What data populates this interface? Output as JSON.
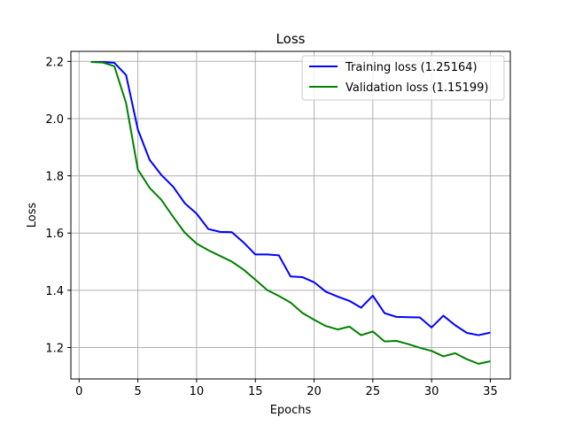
{
  "chart_data": {
    "type": "line",
    "title": "Loss",
    "xlabel": "Epochs",
    "ylabel": "Loss",
    "xlim": [
      -0.7,
      36.7
    ],
    "ylim": [
      1.09,
      2.235
    ],
    "xticks": [
      0,
      5,
      10,
      15,
      20,
      25,
      30,
      35
    ],
    "xtick_labels": [
      "0",
      "5",
      "10",
      "15",
      "20",
      "25",
      "30",
      "35"
    ],
    "yticks": [
      1.2,
      1.4,
      1.6,
      1.8,
      2.0,
      2.2
    ],
    "ytick_labels": [
      "1.2",
      "1.4",
      "1.6",
      "1.8",
      "2.0",
      "2.2"
    ],
    "grid": true,
    "legend_position": "top-right",
    "x": [
      1,
      2,
      3,
      4,
      5,
      6,
      7,
      8,
      9,
      10,
      11,
      12,
      13,
      14,
      15,
      16,
      17,
      18,
      19,
      20,
      21,
      22,
      23,
      24,
      25,
      26,
      27,
      28,
      29,
      30,
      31,
      32,
      33,
      34,
      35
    ],
    "series": [
      {
        "name": "Training loss (1.25164)",
        "color": "#0000ff",
        "values": [
          2.198,
          2.198,
          2.195,
          2.152,
          1.962,
          1.856,
          1.803,
          1.762,
          1.704,
          1.668,
          1.614,
          1.604,
          1.603,
          1.567,
          1.525,
          1.525,
          1.522,
          1.448,
          1.446,
          1.428,
          1.395,
          1.378,
          1.363,
          1.339,
          1.381,
          1.32,
          1.307,
          1.306,
          1.305,
          1.27,
          1.311,
          1.278,
          1.251,
          1.243,
          1.252
        ]
      },
      {
        "name": "Validation loss (1.15199)",
        "color": "#008000",
        "values": [
          2.198,
          2.196,
          2.183,
          2.054,
          1.822,
          1.758,
          1.716,
          1.657,
          1.601,
          1.563,
          1.54,
          1.52,
          1.5,
          1.472,
          1.437,
          1.401,
          1.38,
          1.357,
          1.321,
          1.297,
          1.275,
          1.263,
          1.273,
          1.243,
          1.256,
          1.221,
          1.223,
          1.212,
          1.199,
          1.188,
          1.169,
          1.18,
          1.159,
          1.143,
          1.152
        ]
      }
    ]
  }
}
